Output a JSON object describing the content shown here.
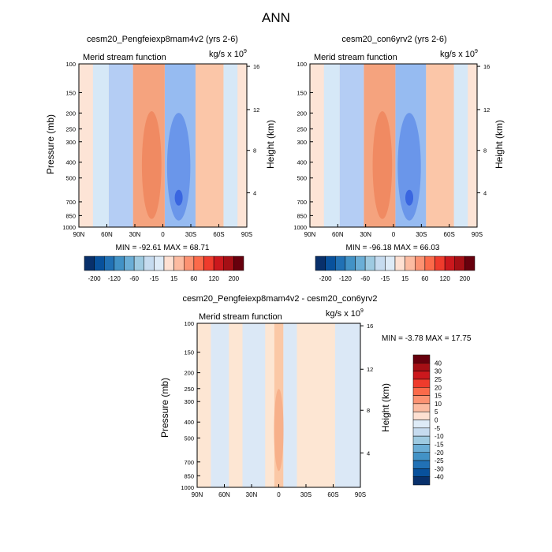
{
  "figure_title": "ANN",
  "chart_data": [
    {
      "type": "heatmap",
      "title": "cesm20_Pengfeiexp8mam4v2 (yrs 2-6)",
      "subtitle_left": "Merid stream function",
      "units": "kg/s x 10",
      "units_exp": "9",
      "ylabel": "Pressure (mb)",
      "ylabel_right": "Height (km)",
      "x_ticks": [
        "90N",
        "60N",
        "30N",
        "0",
        "30S",
        "60S",
        "90S"
      ],
      "y_ticks": [
        "100",
        "150",
        "200",
        "250",
        "300",
        "400",
        "500",
        "700",
        "850",
        "1000"
      ],
      "height_ticks": [
        "16",
        "12",
        "8",
        "4"
      ],
      "stats_text": "MIN = -92.61  MAX =  68.71",
      "min": -92.61,
      "max": 68.71,
      "colorbar_labels": [
        "-200",
        "-120",
        "-60",
        "-15",
        "15",
        "60",
        "120",
        "200"
      ],
      "cells": [
        {
          "lat": [
            -90,
            -80
          ],
          "color": "#fde4d6"
        },
        {
          "lat": [
            -80,
            -65
          ],
          "color": "#d6e8f7"
        },
        {
          "lat": [
            -65,
            -35
          ],
          "color": "#fbc6a8"
        },
        {
          "lat": [
            -35,
            -2
          ],
          "color": "#96bbf1"
        },
        {
          "lat": [
            -2,
            32
          ],
          "color": "#f5a37e"
        },
        {
          "lat": [
            32,
            58
          ],
          "color": "#b4cdf4"
        },
        {
          "lat": [
            58,
            75
          ],
          "color": "#d6e8f7"
        },
        {
          "lat": [
            75,
            90
          ],
          "color": "#fde4d6"
        }
      ]
    },
    {
      "type": "heatmap",
      "title": "cesm20_con6yrv2 (yrs 2-6)",
      "subtitle_left": "Merid stream function",
      "units": "kg/s x 10",
      "units_exp": "9",
      "ylabel": "Pressure (mb)",
      "ylabel_right": "Height (km)",
      "x_ticks": [
        "90N",
        "60N",
        "30N",
        "0",
        "30S",
        "60S",
        "90S"
      ],
      "y_ticks": [
        "100",
        "150",
        "200",
        "250",
        "300",
        "400",
        "500",
        "700",
        "850",
        "1000"
      ],
      "height_ticks": [
        "16",
        "12",
        "8",
        "4"
      ],
      "stats_text": "MIN = -96.18  MAX =  66.03",
      "min": -96.18,
      "max": 66.03,
      "colorbar_labels": [
        "-200",
        "-120",
        "-60",
        "-15",
        "15",
        "60",
        "120",
        "200"
      ],
      "cells": [
        {
          "lat": [
            -90,
            -80
          ],
          "color": "#fde4d6"
        },
        {
          "lat": [
            -80,
            -65
          ],
          "color": "#d6e8f7"
        },
        {
          "lat": [
            -65,
            -35
          ],
          "color": "#fbc6a8"
        },
        {
          "lat": [
            -35,
            -2
          ],
          "color": "#96bbf1"
        },
        {
          "lat": [
            -2,
            32
          ],
          "color": "#f5a37e"
        },
        {
          "lat": [
            32,
            58
          ],
          "color": "#b4cdf4"
        },
        {
          "lat": [
            58,
            75
          ],
          "color": "#d6e8f7"
        },
        {
          "lat": [
            75,
            90
          ],
          "color": "#fde4d6"
        }
      ]
    },
    {
      "type": "heatmap",
      "title": "cesm20_Pengfeiexp8mam4v2 - cesm20_con6yrv2",
      "subtitle_left": "Merid stream function",
      "units": "kg/s x 10",
      "units_exp": "9",
      "ylabel": "Pressure (mb)",
      "ylabel_right": "Height (km)",
      "x_ticks": [
        "90N",
        "60N",
        "30N",
        "0",
        "30S",
        "60S",
        "90S"
      ],
      "y_ticks": [
        "100",
        "150",
        "200",
        "250",
        "300",
        "400",
        "500",
        "700",
        "850",
        "1000"
      ],
      "height_ticks": [
        "16",
        "12",
        "8",
        "4"
      ],
      "stats_text": "MIN =  -3.78  MAX =  17.75",
      "min": -3.78,
      "max": 17.75,
      "colorbar_labels": [
        "40",
        "30",
        "25",
        "20",
        "15",
        "10",
        "5",
        "0",
        "-5",
        "-10",
        "-15",
        "-20",
        "-25",
        "-30",
        "-40"
      ],
      "cells": [
        {
          "lat": [
            -90,
            -62
          ],
          "color": "#dbe8f6"
        },
        {
          "lat": [
            -62,
            -20
          ],
          "color": "#fde6d3"
        },
        {
          "lat": [
            -20,
            -5
          ],
          "color": "#dbe8f6"
        },
        {
          "lat": [
            -5,
            5
          ],
          "color": "#fbc8a6"
        },
        {
          "lat": [
            5,
            15
          ],
          "color": "#fde6d3"
        },
        {
          "lat": [
            15,
            40
          ],
          "color": "#dbe8f6"
        },
        {
          "lat": [
            40,
            55
          ],
          "color": "#fde6d3"
        },
        {
          "lat": [
            55,
            75
          ],
          "color": "#dbe8f6"
        },
        {
          "lat": [
            75,
            90
          ],
          "color": "#fde6d3"
        }
      ]
    }
  ],
  "colors": {
    "panel_colorbar": [
      "#08306b",
      "#08519c",
      "#2171b5",
      "#4292c6",
      "#6baed6",
      "#9ecae1",
      "#c6dbef",
      "#deebf7",
      "#fee0d2",
      "#fcbba1",
      "#fc9272",
      "#fb6a4a",
      "#ef3b2c",
      "#cb181d",
      "#a50f15",
      "#67000d"
    ],
    "diff_colorbar": [
      "#67000d",
      "#a50f15",
      "#cb181d",
      "#ef3b2c",
      "#fb6a4a",
      "#fc9272",
      "#fcbba1",
      "#fee0d2",
      "#deebf7",
      "#c6dbef",
      "#9ecae1",
      "#6baed6",
      "#4292c6",
      "#2171b5",
      "#08519c",
      "#08306b"
    ]
  }
}
